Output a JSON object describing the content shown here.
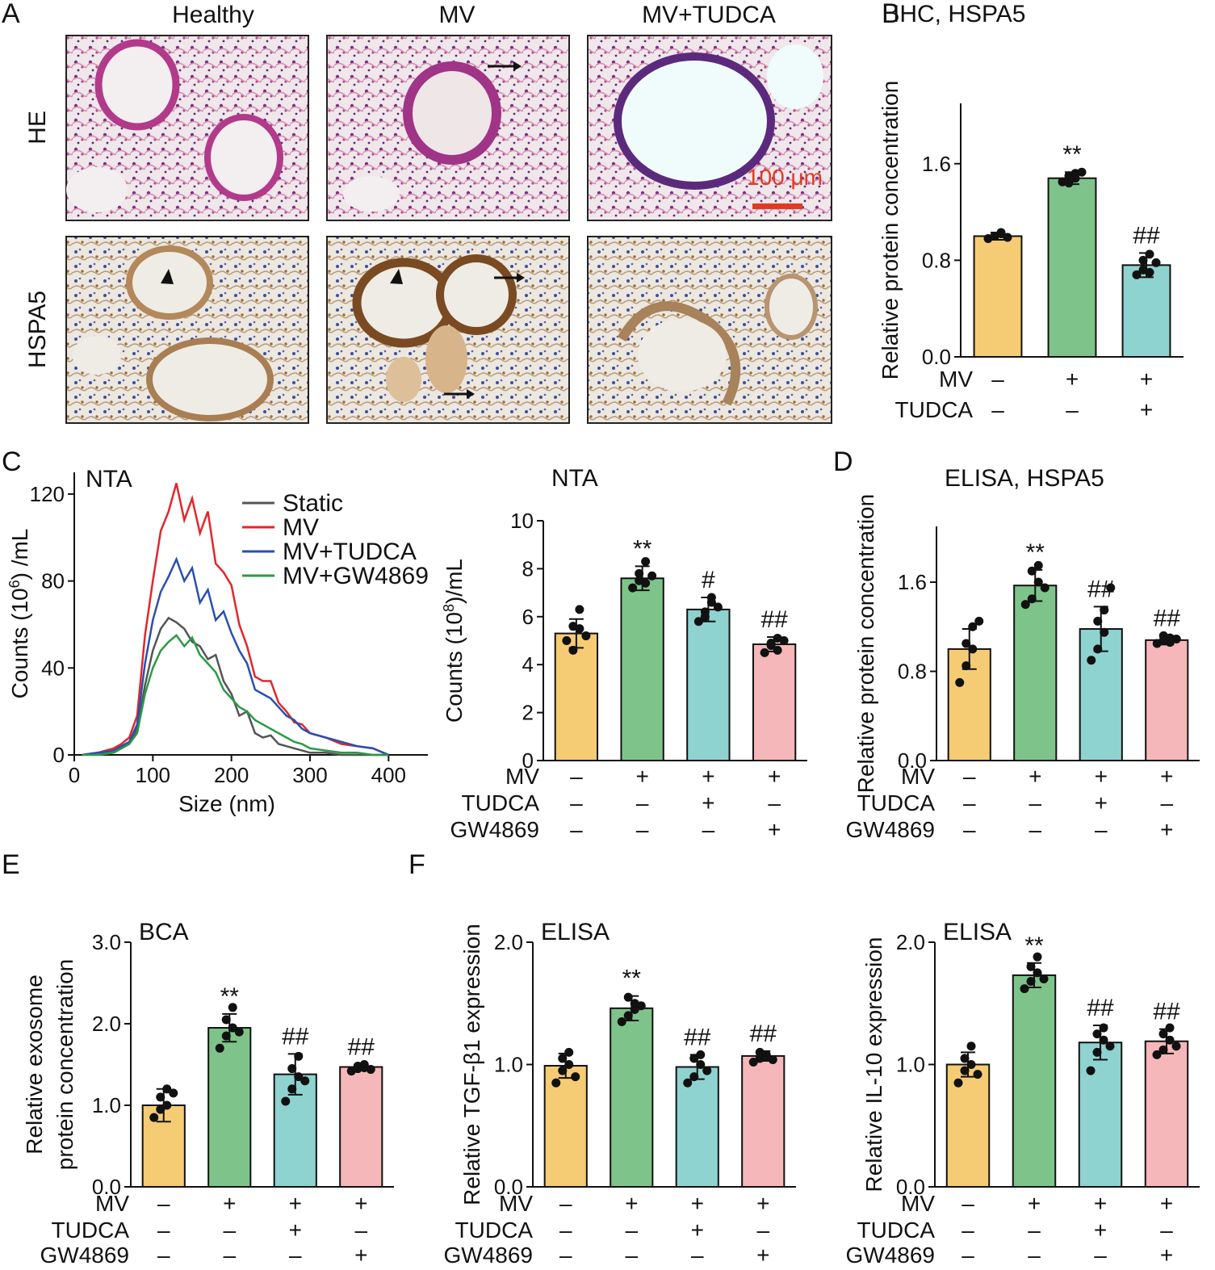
{
  "colors": {
    "yellow": "#f5cc74",
    "green": "#7ec48a",
    "teal": "#8fd3d0",
    "pink": "#f5b7b9",
    "line_static": "#555555",
    "line_mv": "#e3262b",
    "line_tudca": "#2a4fb0",
    "line_gw": "#2b9a46",
    "scale": "#e23a22"
  },
  "panel_a": {
    "letter": "A",
    "columns": [
      "Healthy",
      "MV",
      "MV+TUDCA"
    ],
    "rows": [
      "HE",
      "HSPA5"
    ],
    "scale_bar": "100 μm"
  },
  "chart_data": [
    {
      "id": "B",
      "letter": "B",
      "type": "bar",
      "title": "IHC, HSPA5",
      "ylabel": "Relative protein concentration",
      "ylim": [
        0,
        2.1
      ],
      "yticks": [
        0.0,
        0.8,
        1.6
      ],
      "values": [
        1.0,
        1.48,
        0.76
      ],
      "errors": [
        0.03,
        0.05,
        0.1
      ],
      "colors": [
        "yellow",
        "green",
        "teal"
      ],
      "sig": [
        "",
        "**",
        "##"
      ],
      "points": [
        [
          0.98,
          1.0,
          1.02,
          1.0,
          1.03,
          0.99
        ],
        [
          1.45,
          1.5,
          1.52,
          1.44,
          1.48,
          1.53
        ],
        [
          0.68,
          0.72,
          0.85,
          0.8,
          0.7,
          0.78
        ]
      ],
      "conditions": [
        {
          "name": "MV",
          "values": [
            "–",
            "+",
            "+"
          ]
        },
        {
          "name": "TUDCA",
          "values": [
            "–",
            "–",
            "+"
          ]
        }
      ]
    },
    {
      "id": "C1",
      "letter": "C",
      "type": "line",
      "title": "NTA",
      "xlabel": "Size (nm)",
      "ylabel_parts": [
        "Counts (10",
        "6",
        ") /mL"
      ],
      "xlim": [
        0,
        450
      ],
      "ylim": [
        0,
        130
      ],
      "xticks": [
        0,
        100,
        200,
        300,
        400
      ],
      "yticks": [
        0,
        40,
        80,
        120
      ],
      "series": [
        {
          "name": "Static",
          "color": "line_static",
          "x": [
            10,
            30,
            50,
            60,
            70,
            80,
            90,
            100,
            110,
            120,
            130,
            140,
            150,
            160,
            170,
            180,
            190,
            200,
            210,
            220,
            230,
            240,
            250,
            260,
            270,
            280,
            290,
            300,
            320,
            340,
            360,
            380,
            400
          ],
          "y": [
            0,
            1,
            1,
            3,
            5,
            12,
            32,
            48,
            58,
            63,
            61,
            58,
            52,
            50,
            44,
            46,
            34,
            28,
            18,
            20,
            10,
            8,
            9,
            5,
            4,
            3,
            2,
            1,
            1,
            0,
            0,
            0,
            0
          ]
        },
        {
          "name": "MV",
          "color": "line_mv",
          "x": [
            10,
            30,
            50,
            60,
            70,
            80,
            90,
            100,
            110,
            120,
            130,
            140,
            150,
            160,
            170,
            180,
            190,
            200,
            210,
            220,
            230,
            240,
            250,
            260,
            270,
            280,
            290,
            300,
            320,
            340,
            360,
            380,
            400
          ],
          "y": [
            0,
            1,
            3,
            5,
            8,
            18,
            55,
            80,
            103,
            112,
            125,
            108,
            118,
            102,
            112,
            88,
            84,
            78,
            60,
            50,
            36,
            34,
            34,
            24,
            20,
            15,
            14,
            10,
            8,
            5,
            4,
            3,
            0
          ]
        },
        {
          "name": "MV+TUDCA",
          "color": "line_tudca",
          "x": [
            10,
            30,
            50,
            60,
            70,
            80,
            90,
            100,
            110,
            120,
            130,
            140,
            150,
            160,
            170,
            180,
            190,
            200,
            210,
            220,
            230,
            240,
            250,
            260,
            270,
            280,
            290,
            300,
            320,
            340,
            360,
            380,
            400
          ],
          "y": [
            0,
            1,
            2,
            4,
            6,
            14,
            42,
            62,
            75,
            82,
            90,
            80,
            86,
            70,
            76,
            62,
            66,
            56,
            48,
            42,
            30,
            28,
            26,
            22,
            18,
            16,
            12,
            10,
            8,
            6,
            4,
            3,
            0
          ]
        },
        {
          "name": "MV+GW4869",
          "color": "line_gw",
          "x": [
            10,
            30,
            50,
            60,
            70,
            80,
            90,
            100,
            110,
            120,
            130,
            140,
            150,
            160,
            170,
            180,
            190,
            200,
            210,
            220,
            230,
            240,
            250,
            260,
            270,
            280,
            290,
            300,
            320,
            340,
            360,
            380,
            400
          ],
          "y": [
            0,
            0,
            1,
            3,
            5,
            10,
            28,
            40,
            48,
            52,
            55,
            50,
            54,
            46,
            42,
            38,
            30,
            26,
            22,
            20,
            16,
            14,
            12,
            10,
            8,
            6,
            5,
            3,
            2,
            1,
            1,
            0,
            0
          ]
        }
      ],
      "legend": "top-right"
    },
    {
      "id": "C2",
      "type": "bar",
      "title": "NTA",
      "ylabel_parts": [
        "Counts (10",
        "8",
        ")/mL"
      ],
      "ylim": [
        0,
        10
      ],
      "yticks": [
        0,
        2,
        4,
        6,
        8,
        10
      ],
      "values": [
        5.3,
        7.6,
        6.3,
        4.85
      ],
      "errors": [
        0.6,
        0.5,
        0.5,
        0.3
      ],
      "colors": [
        "yellow",
        "green",
        "teal",
        "pink"
      ],
      "sig": [
        "",
        "**",
        "#",
        "##"
      ],
      "points": [
        [
          5.0,
          5.6,
          6.3,
          4.6,
          5.5,
          5.2
        ],
        [
          7.2,
          7.5,
          8.3,
          7.8,
          7.4,
          7.7
        ],
        [
          5.8,
          6.2,
          6.6,
          6.0,
          6.8,
          6.4
        ],
        [
          4.5,
          4.8,
          5.1,
          4.9,
          4.6,
          5.0
        ]
      ],
      "conditions": [
        {
          "name": "MV",
          "values": [
            "–",
            "+",
            "+",
            "+"
          ]
        },
        {
          "name": "TUDCA",
          "values": [
            "–",
            "–",
            "+",
            "–"
          ]
        },
        {
          "name": "GW4869",
          "values": [
            "–",
            "–",
            "–",
            "+"
          ]
        }
      ]
    },
    {
      "id": "D",
      "letter": "D",
      "type": "bar",
      "title": "ELISA, HSPA5",
      "ylabel": "Relative protein concentration",
      "ylim": [
        0,
        2.1
      ],
      "yticks": [
        0.0,
        0.8,
        1.6
      ],
      "values": [
        1.0,
        1.57,
        1.18,
        1.08
      ],
      "errors": [
        0.18,
        0.14,
        0.2,
        0.04
      ],
      "colors": [
        "yellow",
        "green",
        "teal",
        "pink"
      ],
      "sig": [
        "",
        "**",
        "##",
        "##"
      ],
      "points": [
        [
          0.7,
          0.85,
          1.0,
          1.05,
          1.2,
          1.25
        ],
        [
          1.4,
          1.45,
          1.6,
          1.7,
          1.75,
          1.55
        ],
        [
          0.9,
          1.0,
          1.15,
          1.25,
          1.35,
          1.55
        ],
        [
          1.05,
          1.08,
          1.1,
          1.12,
          1.06,
          1.09
        ]
      ],
      "conditions": [
        {
          "name": "MV",
          "values": [
            "–",
            "+",
            "+",
            "+"
          ]
        },
        {
          "name": "TUDCA",
          "values": [
            "–",
            "–",
            "+",
            "–"
          ]
        },
        {
          "name": "GW4869",
          "values": [
            "–",
            "–",
            "–",
            "+"
          ]
        }
      ]
    },
    {
      "id": "E",
      "letter": "E",
      "type": "bar",
      "title": "BCA",
      "ylabel_lines": [
        "Relative exosome",
        "protein concentration"
      ],
      "ylim": [
        0,
        3.0
      ],
      "yticks": [
        0.0,
        1.0,
        2.0,
        3.0
      ],
      "values": [
        1.0,
        1.95,
        1.38,
        1.47
      ],
      "errors": [
        0.2,
        0.17,
        0.25,
        0.03
      ],
      "colors": [
        "yellow",
        "green",
        "teal",
        "pink"
      ],
      "sig": [
        "",
        "**",
        "##",
        "##"
      ],
      "points": [
        [
          0.85,
          0.95,
          1.0,
          1.1,
          1.2,
          1.15
        ],
        [
          1.7,
          1.85,
          1.95,
          2.05,
          2.2,
          1.9
        ],
        [
          1.05,
          1.2,
          1.35,
          1.45,
          1.6,
          1.3
        ],
        [
          1.42,
          1.45,
          1.5,
          1.48,
          1.46,
          1.44
        ]
      ],
      "conditions": [
        {
          "name": "MV",
          "values": [
            "–",
            "+",
            "+",
            "+"
          ]
        },
        {
          "name": "TUDCA",
          "values": [
            "–",
            "–",
            "+",
            "–"
          ]
        },
        {
          "name": "GW4869",
          "values": [
            "–",
            "–",
            "–",
            "+"
          ]
        }
      ]
    },
    {
      "id": "F1",
      "letter": "F",
      "type": "bar",
      "title": "ELISA",
      "ylabel": "Relative TGF-β1 expression",
      "ylim": [
        0,
        2.0
      ],
      "yticks": [
        0.0,
        1.0,
        2.0
      ],
      "values": [
        0.99,
        1.46,
        0.98,
        1.07
      ],
      "errors": [
        0.1,
        0.1,
        0.1,
        0.04
      ],
      "colors": [
        "yellow",
        "green",
        "teal",
        "pink"
      ],
      "sig": [
        "",
        "**",
        "##",
        "##"
      ],
      "points": [
        [
          0.85,
          0.95,
          1.0,
          1.05,
          1.1,
          0.9
        ],
        [
          1.35,
          1.4,
          1.5,
          1.55,
          1.45,
          1.48
        ],
        [
          0.85,
          0.9,
          1.0,
          1.05,
          1.08,
          0.95
        ],
        [
          1.02,
          1.05,
          1.08,
          1.1,
          1.06,
          1.04
        ]
      ],
      "conditions": [
        {
          "name": "MV",
          "values": [
            "–",
            "+",
            "+",
            "+"
          ]
        },
        {
          "name": "TUDCA",
          "values": [
            "–",
            "–",
            "+",
            "–"
          ]
        },
        {
          "name": "GW4869",
          "values": [
            "–",
            "–",
            "–",
            "+"
          ]
        }
      ]
    },
    {
      "id": "F2",
      "type": "bar",
      "title": "ELISA",
      "ylabel": "Relative IL-10 expression",
      "ylim": [
        0,
        2.0
      ],
      "yticks": [
        0.0,
        1.0,
        2.0
      ],
      "values": [
        1.0,
        1.73,
        1.18,
        1.19
      ],
      "errors": [
        0.1,
        0.1,
        0.14,
        0.1
      ],
      "colors": [
        "yellow",
        "green",
        "teal",
        "pink"
      ],
      "sig": [
        "",
        "**",
        "##",
        "##"
      ],
      "points": [
        [
          0.85,
          0.95,
          1.0,
          1.05,
          1.15,
          0.92
        ],
        [
          1.62,
          1.68,
          1.75,
          1.8,
          1.88,
          1.7
        ],
        [
          0.95,
          1.1,
          1.2,
          1.25,
          1.3,
          1.15
        ],
        [
          1.08,
          1.12,
          1.2,
          1.25,
          1.3,
          1.15
        ]
      ],
      "conditions": [
        {
          "name": "MV",
          "values": [
            "–",
            "+",
            "+",
            "+"
          ]
        },
        {
          "name": "TUDCA",
          "values": [
            "–",
            "–",
            "+",
            "–"
          ]
        },
        {
          "name": "GW4869",
          "values": [
            "–",
            "–",
            "–",
            "+"
          ]
        }
      ]
    }
  ]
}
